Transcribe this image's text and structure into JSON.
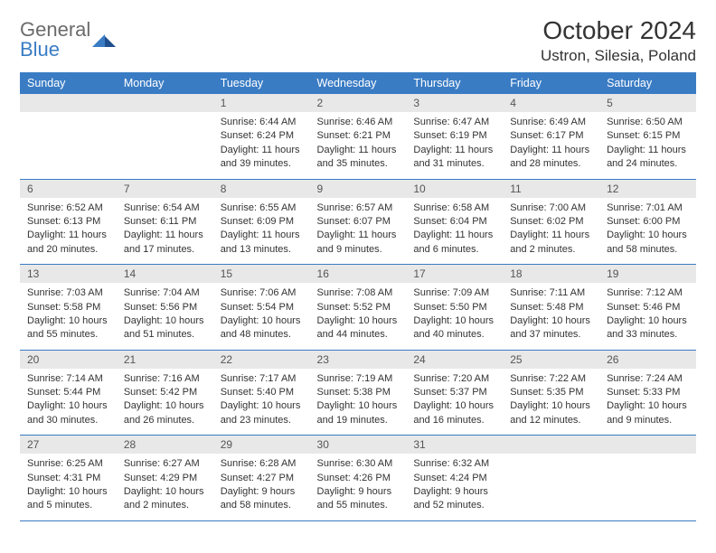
{
  "brand": {
    "word1": "General",
    "word2": "Blue"
  },
  "header": {
    "title": "October 2024",
    "location": "Ustron, Silesia, Poland"
  },
  "colors": {
    "header_bg": "#3a7cc4",
    "header_text": "#ffffff",
    "daynum_bg": "#e8e8e8",
    "border": "#3a7cc4",
    "logo_gray": "#6b6b6b",
    "logo_blue": "#3a7cc4"
  },
  "weekdays": [
    "Sunday",
    "Monday",
    "Tuesday",
    "Wednesday",
    "Thursday",
    "Friday",
    "Saturday"
  ],
  "grid": [
    [
      {
        "n": "",
        "lines": []
      },
      {
        "n": "",
        "lines": []
      },
      {
        "n": "1",
        "lines": [
          "Sunrise: 6:44 AM",
          "Sunset: 6:24 PM",
          "Daylight: 11 hours and 39 minutes."
        ]
      },
      {
        "n": "2",
        "lines": [
          "Sunrise: 6:46 AM",
          "Sunset: 6:21 PM",
          "Daylight: 11 hours and 35 minutes."
        ]
      },
      {
        "n": "3",
        "lines": [
          "Sunrise: 6:47 AM",
          "Sunset: 6:19 PM",
          "Daylight: 11 hours and 31 minutes."
        ]
      },
      {
        "n": "4",
        "lines": [
          "Sunrise: 6:49 AM",
          "Sunset: 6:17 PM",
          "Daylight: 11 hours and 28 minutes."
        ]
      },
      {
        "n": "5",
        "lines": [
          "Sunrise: 6:50 AM",
          "Sunset: 6:15 PM",
          "Daylight: 11 hours and 24 minutes."
        ]
      }
    ],
    [
      {
        "n": "6",
        "lines": [
          "Sunrise: 6:52 AM",
          "Sunset: 6:13 PM",
          "Daylight: 11 hours and 20 minutes."
        ]
      },
      {
        "n": "7",
        "lines": [
          "Sunrise: 6:54 AM",
          "Sunset: 6:11 PM",
          "Daylight: 11 hours and 17 minutes."
        ]
      },
      {
        "n": "8",
        "lines": [
          "Sunrise: 6:55 AM",
          "Sunset: 6:09 PM",
          "Daylight: 11 hours and 13 minutes."
        ]
      },
      {
        "n": "9",
        "lines": [
          "Sunrise: 6:57 AM",
          "Sunset: 6:07 PM",
          "Daylight: 11 hours and 9 minutes."
        ]
      },
      {
        "n": "10",
        "lines": [
          "Sunrise: 6:58 AM",
          "Sunset: 6:04 PM",
          "Daylight: 11 hours and 6 minutes."
        ]
      },
      {
        "n": "11",
        "lines": [
          "Sunrise: 7:00 AM",
          "Sunset: 6:02 PM",
          "Daylight: 11 hours and 2 minutes."
        ]
      },
      {
        "n": "12",
        "lines": [
          "Sunrise: 7:01 AM",
          "Sunset: 6:00 PM",
          "Daylight: 10 hours and 58 minutes."
        ]
      }
    ],
    [
      {
        "n": "13",
        "lines": [
          "Sunrise: 7:03 AM",
          "Sunset: 5:58 PM",
          "Daylight: 10 hours and 55 minutes."
        ]
      },
      {
        "n": "14",
        "lines": [
          "Sunrise: 7:04 AM",
          "Sunset: 5:56 PM",
          "Daylight: 10 hours and 51 minutes."
        ]
      },
      {
        "n": "15",
        "lines": [
          "Sunrise: 7:06 AM",
          "Sunset: 5:54 PM",
          "Daylight: 10 hours and 48 minutes."
        ]
      },
      {
        "n": "16",
        "lines": [
          "Sunrise: 7:08 AM",
          "Sunset: 5:52 PM",
          "Daylight: 10 hours and 44 minutes."
        ]
      },
      {
        "n": "17",
        "lines": [
          "Sunrise: 7:09 AM",
          "Sunset: 5:50 PM",
          "Daylight: 10 hours and 40 minutes."
        ]
      },
      {
        "n": "18",
        "lines": [
          "Sunrise: 7:11 AM",
          "Sunset: 5:48 PM",
          "Daylight: 10 hours and 37 minutes."
        ]
      },
      {
        "n": "19",
        "lines": [
          "Sunrise: 7:12 AM",
          "Sunset: 5:46 PM",
          "Daylight: 10 hours and 33 minutes."
        ]
      }
    ],
    [
      {
        "n": "20",
        "lines": [
          "Sunrise: 7:14 AM",
          "Sunset: 5:44 PM",
          "Daylight: 10 hours and 30 minutes."
        ]
      },
      {
        "n": "21",
        "lines": [
          "Sunrise: 7:16 AM",
          "Sunset: 5:42 PM",
          "Daylight: 10 hours and 26 minutes."
        ]
      },
      {
        "n": "22",
        "lines": [
          "Sunrise: 7:17 AM",
          "Sunset: 5:40 PM",
          "Daylight: 10 hours and 23 minutes."
        ]
      },
      {
        "n": "23",
        "lines": [
          "Sunrise: 7:19 AM",
          "Sunset: 5:38 PM",
          "Daylight: 10 hours and 19 minutes."
        ]
      },
      {
        "n": "24",
        "lines": [
          "Sunrise: 7:20 AM",
          "Sunset: 5:37 PM",
          "Daylight: 10 hours and 16 minutes."
        ]
      },
      {
        "n": "25",
        "lines": [
          "Sunrise: 7:22 AM",
          "Sunset: 5:35 PM",
          "Daylight: 10 hours and 12 minutes."
        ]
      },
      {
        "n": "26",
        "lines": [
          "Sunrise: 7:24 AM",
          "Sunset: 5:33 PM",
          "Daylight: 10 hours and 9 minutes."
        ]
      }
    ],
    [
      {
        "n": "27",
        "lines": [
          "Sunrise: 6:25 AM",
          "Sunset: 4:31 PM",
          "Daylight: 10 hours and 5 minutes."
        ]
      },
      {
        "n": "28",
        "lines": [
          "Sunrise: 6:27 AM",
          "Sunset: 4:29 PM",
          "Daylight: 10 hours and 2 minutes."
        ]
      },
      {
        "n": "29",
        "lines": [
          "Sunrise: 6:28 AM",
          "Sunset: 4:27 PM",
          "Daylight: 9 hours and 58 minutes."
        ]
      },
      {
        "n": "30",
        "lines": [
          "Sunrise: 6:30 AM",
          "Sunset: 4:26 PM",
          "Daylight: 9 hours and 55 minutes."
        ]
      },
      {
        "n": "31",
        "lines": [
          "Sunrise: 6:32 AM",
          "Sunset: 4:24 PM",
          "Daylight: 9 hours and 52 minutes."
        ]
      },
      {
        "n": "",
        "lines": []
      },
      {
        "n": "",
        "lines": []
      }
    ]
  ]
}
